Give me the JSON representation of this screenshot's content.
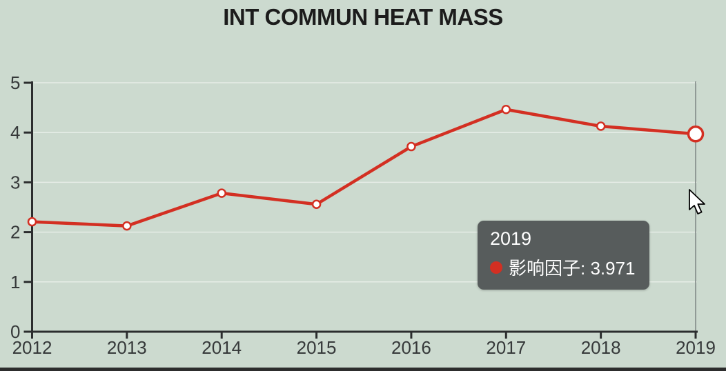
{
  "chart_data": {
    "type": "line",
    "title": "INT COMMUN HEAT MASS",
    "xlabel": "",
    "ylabel": "",
    "categories": [
      "2012",
      "2013",
      "2014",
      "2015",
      "2016",
      "2017",
      "2018",
      "2019"
    ],
    "series": [
      {
        "name": "影响因子",
        "values": [
          2.208,
          2.124,
          2.782,
          2.559,
          3.718,
          4.463,
          4.127,
          3.971
        ]
      }
    ],
    "ylim": [
      0,
      5
    ],
    "yticks": [
      0,
      1,
      2,
      3,
      4,
      5
    ],
    "grid": true,
    "legend_position": "none",
    "highlight_index": 7
  },
  "tooltip": {
    "title": "2019",
    "series_label": "影响因子",
    "value": "3.971",
    "line2": "影响因子: 3.971"
  },
  "colors": {
    "background": "#ccdacf",
    "line": "#d32f22",
    "marker_fill": "#ffffff",
    "axis": "#2b2d2e",
    "tick_label": "#36393a",
    "title_text": "#1c1c1c",
    "gridline": "rgba(255,255,255,0.5)",
    "crosshair": "#8a938f",
    "tooltip_bg": "#575c5c",
    "tooltip_text": "#ffffff"
  },
  "cursor": "arrow-pointer"
}
